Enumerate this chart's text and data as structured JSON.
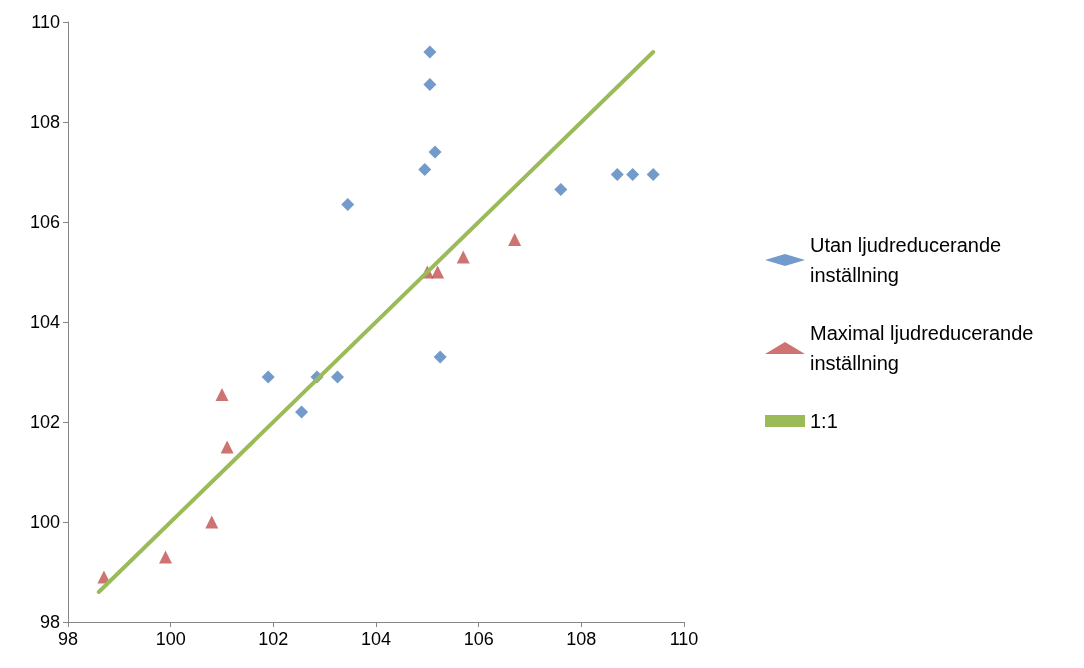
{
  "chart_data": {
    "type": "scatter",
    "xlim": [
      98,
      110
    ],
    "xticks": [
      98,
      100,
      102,
      104,
      106,
      108,
      110
    ],
    "ylim": [
      98,
      110
    ],
    "yticks": [
      98,
      100,
      102,
      104,
      106,
      108,
      110
    ],
    "grid": false,
    "legend": "right",
    "series": [
      {
        "name": "Utan ljudreducerande inställning",
        "marker": "diamond",
        "color": "#4f81bd",
        "x": [
          105.05,
          105.05,
          105.15,
          104.95,
          103.45,
          107.6,
          108.7,
          109.0,
          109.4,
          105.25,
          101.9,
          102.85,
          103.25,
          102.55
        ],
        "values": [
          109.4,
          108.75,
          107.4,
          107.05,
          106.35,
          106.65,
          106.95,
          106.95,
          106.95,
          103.3,
          102.9,
          102.9,
          102.9,
          102.2
        ]
      },
      {
        "name": "Maximal ljudreducerande inställning",
        "marker": "triangle",
        "color": "#c0504d",
        "x": [
          98.7,
          99.9,
          100.8,
          101.1,
          101.0,
          105.0,
          105.2,
          105.7,
          106.7
        ],
        "values": [
          98.9,
          99.3,
          100.0,
          101.5,
          102.55,
          105.0,
          105.0,
          105.3,
          105.65
        ]
      },
      {
        "name": "1:1",
        "type": "line",
        "marker": "none",
        "line_style": "solid",
        "color": "#9bbb59",
        "x": [
          98.6,
          109.4
        ],
        "values": [
          98.6,
          109.4
        ]
      }
    ]
  }
}
